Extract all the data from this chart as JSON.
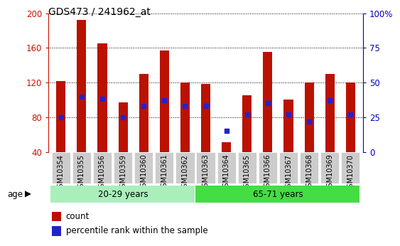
{
  "title": "GDS473 / 241962_at",
  "samples": [
    "GSM10354",
    "GSM10355",
    "GSM10356",
    "GSM10359",
    "GSM10360",
    "GSM10361",
    "GSM10362",
    "GSM10363",
    "GSM10364",
    "GSM10365",
    "GSM10366",
    "GSM10367",
    "GSM10368",
    "GSM10369",
    "GSM10370"
  ],
  "counts": [
    122,
    192,
    165,
    97,
    130,
    157,
    120,
    118,
    51,
    105,
    155,
    100,
    120,
    130,
    120
  ],
  "percentiles": [
    25,
    40,
    38,
    25,
    33,
    37,
    33,
    33,
    15,
    27,
    35,
    27,
    22,
    37,
    27
  ],
  "group1_label": "20-29 years",
  "group2_label": "65-71 years",
  "group1_count": 7,
  "group2_count": 8,
  "ylim_left": [
    40,
    200
  ],
  "ylim_right": [
    0,
    100
  ],
  "yticks_left": [
    40,
    80,
    120,
    160,
    200
  ],
  "yticks_right": [
    0,
    25,
    50,
    75,
    100
  ],
  "ytick_labels_right": [
    "0",
    "25",
    "50",
    "75",
    "100%"
  ],
  "bar_color": "#bb1100",
  "dot_color": "#2222cc",
  "group1_bg": "#aaeebb",
  "group2_bg": "#44dd44",
  "age_label": "age",
  "legend_count": "count",
  "legend_percentile": "percentile rank within the sample",
  "left_tick_color": "#cc1100",
  "right_tick_color": "#0000bb",
  "bar_width": 0.45
}
